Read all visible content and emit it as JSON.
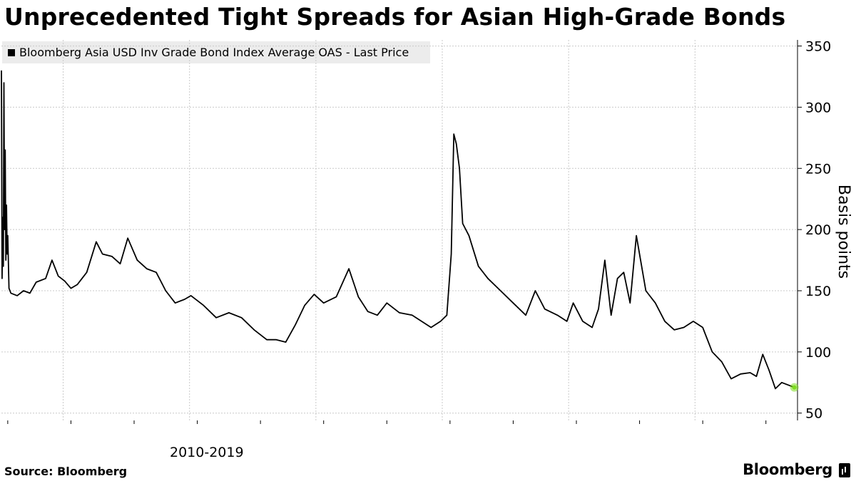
{
  "chart_data": {
    "type": "line",
    "title": "Unprecedented Tight Spreads for Asian High-Grade Bonds",
    "ylabel": "Basis points",
    "xlabel": "",
    "x_tick_labels": [
      "2010-2019"
    ],
    "ylim": [
      44,
      355
    ],
    "y_ticks": [
      50,
      100,
      150,
      200,
      250,
      300,
      350
    ],
    "grid": true,
    "legend_position": "top-left",
    "series": [
      {
        "name": "Bloomberg Asia USD Inv Grade Bond Index Average OAS - Last Price",
        "color": "#000000",
        "x": [
          2009.0,
          2009.01,
          2009.02,
          2009.03,
          2009.04,
          2009.05,
          2009.06,
          2009.07,
          2009.08,
          2009.09,
          2009.1,
          2009.12,
          2009.15,
          2009.25,
          2009.35,
          2009.45,
          2009.55,
          2009.7,
          2009.8,
          2009.9,
          2010.0,
          2010.1,
          2010.2,
          2010.35,
          2010.5,
          2010.6,
          2010.75,
          2010.88,
          2011.0,
          2011.15,
          2011.3,
          2011.45,
          2011.6,
          2011.75,
          2011.9,
          2012.0,
          2012.2,
          2012.4,
          2012.6,
          2012.8,
          2013.0,
          2013.2,
          2013.35,
          2013.5,
          2013.65,
          2013.8,
          2013.95,
          2014.1,
          2014.3,
          2014.5,
          2014.65,
          2014.8,
          2014.95,
          2015.1,
          2015.3,
          2015.5,
          2015.65,
          2015.8,
          2015.95,
          2016.05,
          2016.12,
          2016.16,
          2016.2,
          2016.25,
          2016.3,
          2016.4,
          2016.55,
          2016.7,
          2016.9,
          2017.1,
          2017.3,
          2017.45,
          2017.6,
          2017.8,
          2017.95,
          2018.05,
          2018.2,
          2018.35,
          2018.45,
          2018.55,
          2018.65,
          2018.75,
          2018.85,
          2018.95,
          2019.05,
          2019.2,
          2019.35,
          2019.5,
          2019.65,
          2019.8,
          2019.95,
          2020.1,
          2020.25,
          2020.4,
          2020.55,
          2020.7,
          2020.85,
          2020.95,
          2021.05,
          2021.15,
          2021.25,
          2021.35,
          2021.45,
          2021.55
        ],
        "values": [
          330,
          160,
          210,
          170,
          320,
          200,
          265,
          175,
          220,
          180,
          195,
          152,
          148,
          146,
          150,
          148,
          157,
          160,
          175,
          162,
          158,
          152,
          155,
          165,
          190,
          180,
          178,
          172,
          193,
          175,
          168,
          165,
          150,
          140,
          143,
          146,
          138,
          128,
          132,
          128,
          118,
          110,
          110,
          108,
          122,
          138,
          147,
          140,
          145,
          168,
          145,
          133,
          130,
          140,
          132,
          130,
          125,
          120,
          125,
          130,
          180,
          278,
          270,
          250,
          205,
          195,
          170,
          160,
          150,
          140,
          130,
          150,
          135,
          130,
          125,
          140,
          125,
          120,
          135,
          175,
          130,
          160,
          165,
          140,
          195,
          150,
          140,
          125,
          118,
          120,
          125,
          120,
          100,
          92,
          78,
          82,
          83,
          80,
          98,
          85,
          70,
          75,
          73,
          71
        ]
      }
    ],
    "last_point_marker_color": "#7ddc1f"
  },
  "footer": {
    "source": "Source: Bloomberg",
    "brand": "Bloomberg"
  }
}
